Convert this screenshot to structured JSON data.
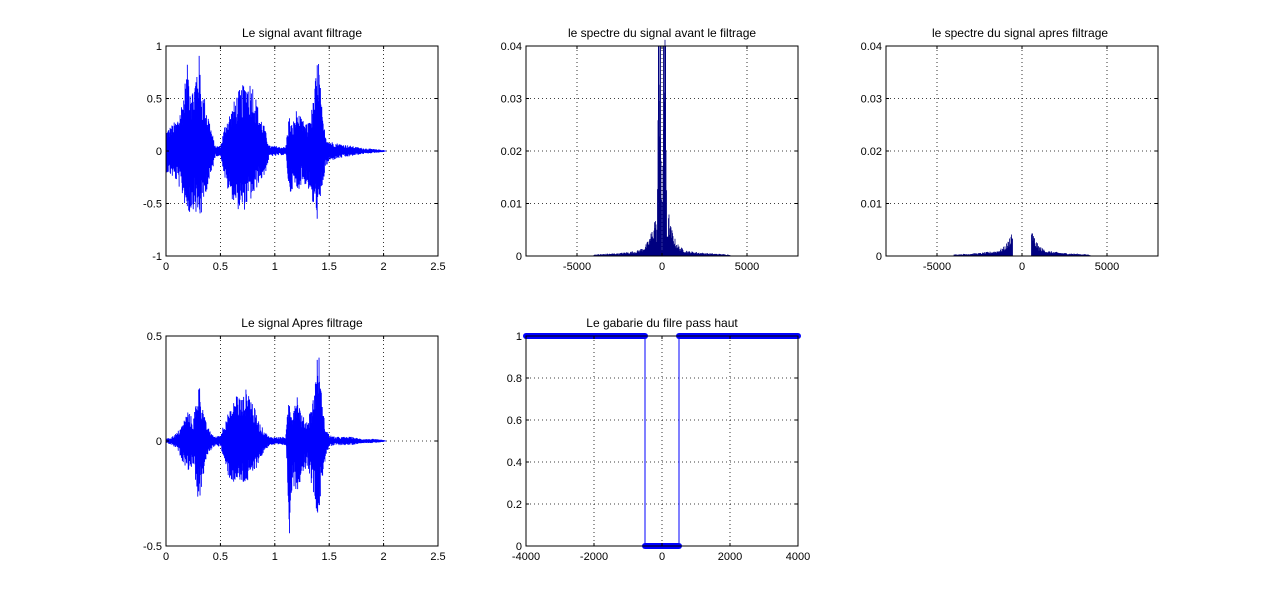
{
  "figure": {
    "colors": {
      "signal": "#0000ff",
      "spectrum": "#000080",
      "axis": "#000000",
      "grid": "#000000",
      "background": "#ffffff"
    }
  },
  "chart_data": [
    {
      "type": "line",
      "title": "Le signal avant filtrage",
      "xlim": [
        0,
        2.5
      ],
      "ylim": [
        -1,
        1
      ],
      "xticks": [
        "0",
        "0.5",
        "1",
        "1.5",
        "2",
        "2.5"
      ],
      "yticks": [
        "-1",
        "-0.5",
        "0",
        "0.5",
        "1"
      ],
      "grid": true,
      "series": [
        {
          "kind": "envelope",
          "x": [
            0,
            0.05,
            0.1,
            0.15,
            0.2,
            0.25,
            0.3,
            0.33,
            0.36,
            0.4,
            0.45,
            0.5,
            0.55,
            0.6,
            0.65,
            0.7,
            0.75,
            0.8,
            0.85,
            0.9,
            0.95,
            1.0,
            1.05,
            1.1,
            1.13,
            1.16,
            1.2,
            1.25,
            1.3,
            1.35,
            1.4,
            1.42,
            1.44,
            1.47,
            1.5,
            1.55,
            1.6,
            1.7,
            1.8,
            1.9,
            2.0,
            2.02
          ],
          "upper": [
            0.2,
            0.25,
            0.3,
            0.5,
            0.85,
            0.6,
            0.98,
            0.6,
            0.5,
            0.3,
            0.05,
            0.05,
            0.3,
            0.4,
            0.55,
            0.62,
            0.7,
            0.65,
            0.4,
            0.25,
            0.05,
            0.05,
            0.04,
            0.04,
            0.35,
            0.25,
            0.4,
            0.3,
            0.25,
            0.45,
            0.98,
            0.6,
            0.3,
            0.15,
            0.1,
            0.08,
            0.07,
            0.05,
            0.03,
            0.02,
            0.01,
            0.0
          ],
          "lower": [
            -0.2,
            -0.25,
            -0.3,
            -0.45,
            -0.62,
            -0.55,
            -0.68,
            -0.6,
            -0.4,
            -0.3,
            -0.05,
            -0.05,
            -0.35,
            -0.45,
            -0.55,
            -0.6,
            -0.5,
            -0.45,
            -0.3,
            -0.25,
            -0.05,
            -0.05,
            -0.04,
            -0.04,
            -0.45,
            -0.35,
            -0.4,
            -0.3,
            -0.35,
            -0.55,
            -0.7,
            -0.5,
            -0.3,
            -0.15,
            -0.1,
            -0.08,
            -0.07,
            -0.05,
            -0.03,
            -0.02,
            -0.01,
            0.0
          ]
        }
      ]
    },
    {
      "type": "bar",
      "title": "le spectre du signal avant le filtrage",
      "xlim": [
        -8000,
        8000
      ],
      "ylim": [
        0,
        0.04
      ],
      "xticks": [
        "-5000",
        "0",
        "5000"
      ],
      "yticks": [
        "0",
        "0.01",
        "0.02",
        "0.03",
        "0.04"
      ],
      "grid": true,
      "series": [
        {
          "kind": "spectrum",
          "x": [
            -4000,
            -3000,
            -2500,
            -2000,
            -1500,
            -1200,
            -1000,
            -800,
            -600,
            -500,
            -400,
            -300,
            -200,
            -100,
            0,
            100,
            200,
            300,
            400,
            500,
            600,
            800,
            1000,
            1200,
            1500,
            2000,
            2500,
            3000,
            4000
          ],
          "y": [
            0.0003,
            0.0005,
            0.0006,
            0.0008,
            0.001,
            0.0015,
            0.002,
            0.003,
            0.005,
            0.006,
            0.0085,
            0.004,
            0.042,
            0.042,
            0.001,
            0.042,
            0.042,
            0.004,
            0.0085,
            0.006,
            0.005,
            0.003,
            0.002,
            0.0015,
            0.001,
            0.0008,
            0.0006,
            0.0005,
            0.0003
          ]
        }
      ]
    },
    {
      "type": "bar",
      "title": "le spectre du signal apres filtrage",
      "xlim": [
        -8000,
        8000
      ],
      "ylim": [
        0,
        0.04
      ],
      "xticks": [
        "-5000",
        "0",
        "5000"
      ],
      "yticks": [
        "0",
        "0.01",
        "0.02",
        "0.03",
        "0.04"
      ],
      "grid": true,
      "series": [
        {
          "kind": "spectrum",
          "x": [
            -4000,
            -3000,
            -2500,
            -2000,
            -1500,
            -1200,
            -1000,
            -900,
            -800,
            -700,
            -600,
            -550,
            550,
            600,
            700,
            800,
            900,
            1000,
            1200,
            1500,
            2000,
            2500,
            3000,
            4000
          ],
          "y": [
            0.0003,
            0.0005,
            0.0006,
            0.0008,
            0.001,
            0.0015,
            0.002,
            0.0025,
            0.003,
            0.004,
            0.005,
            0.0045,
            0.0045,
            0.005,
            0.004,
            0.003,
            0.0025,
            0.002,
            0.0015,
            0.001,
            0.0008,
            0.0006,
            0.0005,
            0.0003
          ]
        }
      ]
    },
    {
      "type": "line",
      "title": "Le signal Apres filtrage",
      "xlim": [
        0,
        2.5
      ],
      "ylim": [
        -0.5,
        0.5
      ],
      "xticks": [
        "0",
        "0.5",
        "1",
        "1.5",
        "2",
        "2.5"
      ],
      "yticks": [
        "-0.5",
        "0",
        "0.5"
      ],
      "grid": true,
      "series": [
        {
          "kind": "envelope",
          "x": [
            0,
            0.05,
            0.1,
            0.15,
            0.2,
            0.25,
            0.3,
            0.33,
            0.36,
            0.4,
            0.45,
            0.5,
            0.55,
            0.6,
            0.65,
            0.7,
            0.75,
            0.8,
            0.85,
            0.9,
            0.95,
            1.0,
            1.05,
            1.1,
            1.13,
            1.16,
            1.2,
            1.25,
            1.3,
            1.35,
            1.4,
            1.42,
            1.44,
            1.47,
            1.5,
            1.55,
            1.6,
            1.7,
            1.8,
            1.9,
            2.0,
            2.02
          ],
          "upper": [
            0.01,
            0.02,
            0.04,
            0.08,
            0.15,
            0.1,
            0.29,
            0.2,
            0.1,
            0.05,
            0.02,
            0.03,
            0.12,
            0.15,
            0.24,
            0.2,
            0.27,
            0.18,
            0.1,
            0.05,
            0.02,
            0.02,
            0.02,
            0.02,
            0.22,
            0.15,
            0.25,
            0.12,
            0.1,
            0.2,
            0.46,
            0.3,
            0.15,
            0.06,
            0.03,
            0.02,
            0.02,
            0.02,
            0.01,
            0.01,
            0.005,
            0.0
          ],
          "lower": [
            -0.01,
            -0.02,
            -0.04,
            -0.1,
            -0.14,
            -0.12,
            -0.32,
            -0.2,
            -0.1,
            -0.05,
            -0.02,
            -0.03,
            -0.15,
            -0.2,
            -0.2,
            -0.21,
            -0.2,
            -0.16,
            -0.1,
            -0.05,
            -0.02,
            -0.02,
            -0.02,
            -0.02,
            -0.45,
            -0.2,
            -0.25,
            -0.15,
            -0.12,
            -0.25,
            -0.38,
            -0.25,
            -0.15,
            -0.06,
            -0.03,
            -0.02,
            -0.02,
            -0.02,
            -0.01,
            -0.01,
            -0.005,
            0.0
          ]
        }
      ]
    },
    {
      "type": "line",
      "title": "Le gabarie du filre pass haut",
      "xlim": [
        -4000,
        4000
      ],
      "ylim": [
        0,
        1
      ],
      "xticks": [
        "-4000",
        "-2000",
        "0",
        "2000",
        "4000"
      ],
      "yticks": [
        "0",
        "0.2",
        "0.4",
        "0.6",
        "0.8",
        "1"
      ],
      "grid": true,
      "series": [
        {
          "kind": "step",
          "x": [
            -4000,
            -500,
            -500,
            500,
            500,
            4000
          ],
          "y": [
            1,
            1,
            0,
            0,
            1,
            1
          ]
        }
      ]
    }
  ]
}
